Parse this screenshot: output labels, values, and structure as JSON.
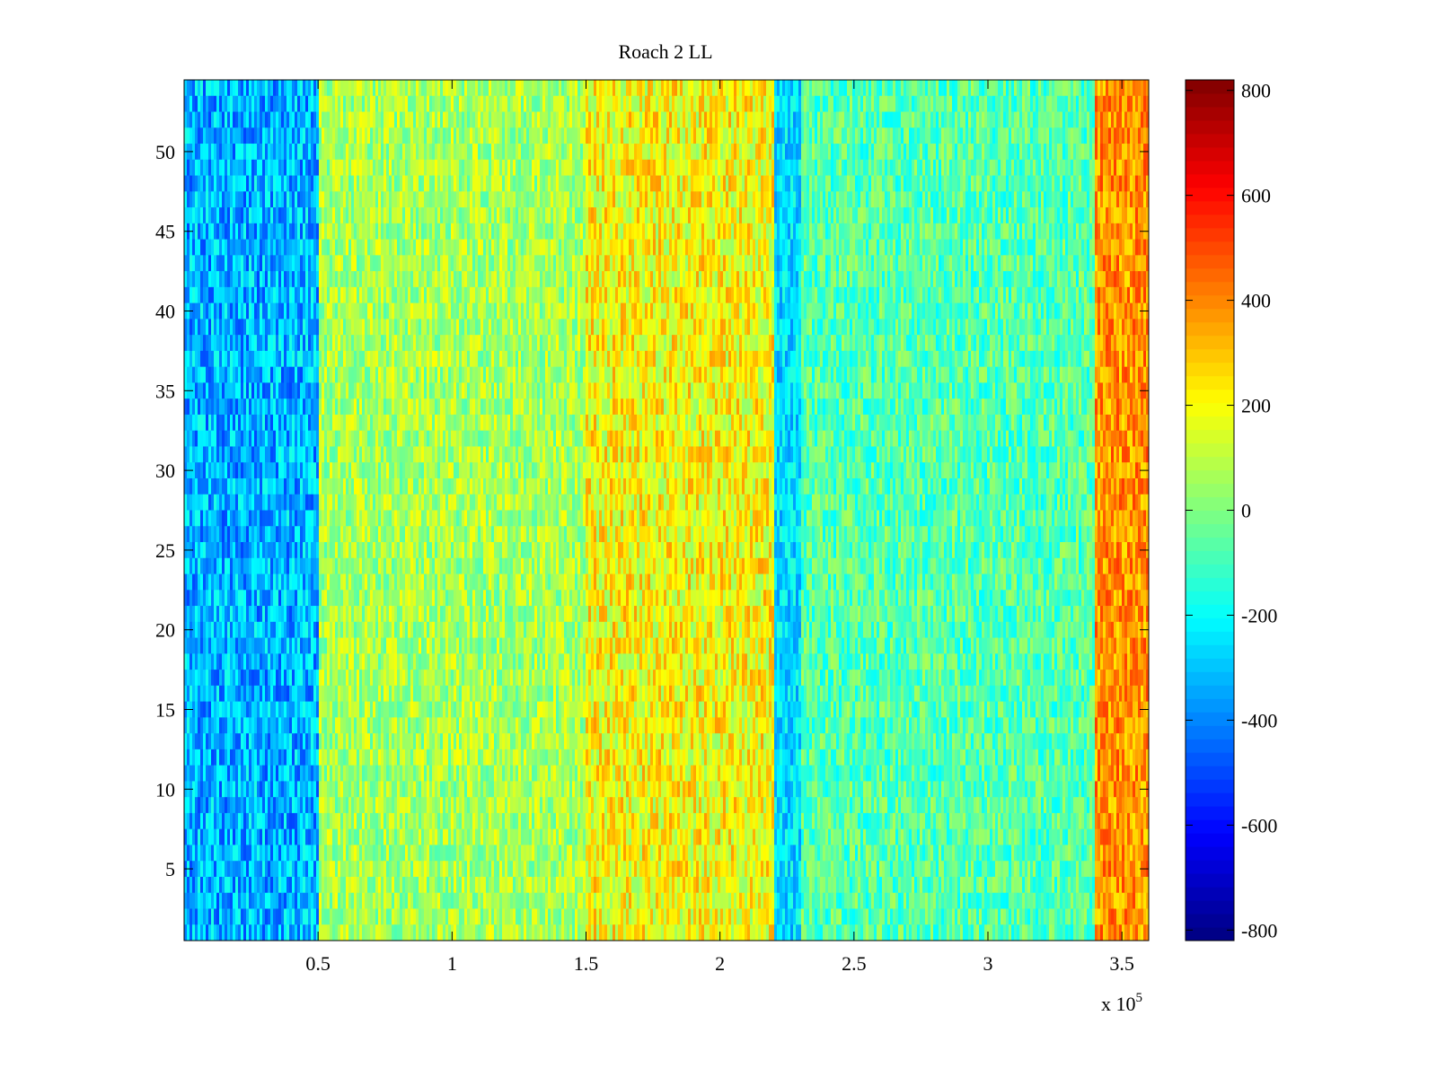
{
  "chart_data": {
    "type": "heatmap",
    "title": "Roach 2 LL",
    "xlabel": "",
    "ylabel": "",
    "x_exponent_label": "x 10",
    "x_exponent_power": "5",
    "xlim": [
      0.0,
      3.6
    ],
    "ylim": [
      0.5,
      54.5
    ],
    "x_ticks": [
      0.5,
      1,
      1.5,
      2,
      2.5,
      3,
      3.5
    ],
    "x_tick_labels": [
      "0.5",
      "1",
      "1.5",
      "2",
      "2.5",
      "3",
      "3.5"
    ],
    "y_ticks": [
      5,
      10,
      15,
      20,
      25,
      30,
      35,
      40,
      45,
      50
    ],
    "y_tick_labels": [
      "5",
      "10",
      "15",
      "20",
      "25",
      "30",
      "35",
      "40",
      "45",
      "50"
    ],
    "colormap": "jet",
    "clim": [
      -820,
      820
    ],
    "colorbar_ticks": [
      800,
      600,
      400,
      200,
      0,
      -200,
      -400,
      -600,
      -800
    ],
    "colorbar_tick_labels": [
      "800",
      "600",
      "400",
      "200",
      "0",
      "-200",
      "-400",
      "-600",
      "-800"
    ],
    "rows": 54,
    "column_bands": [
      {
        "x_start": 0.0,
        "x_end": 0.5,
        "mean_value": -330,
        "noise": 110
      },
      {
        "x_start": 0.5,
        "x_end": 1.5,
        "mean_value": 60,
        "noise": 90
      },
      {
        "x_start": 1.5,
        "x_end": 2.2,
        "mean_value": 200,
        "noise": 110
      },
      {
        "x_start": 2.2,
        "x_end": 2.3,
        "mean_value": -260,
        "noise": 80
      },
      {
        "x_start": 2.3,
        "x_end": 3.4,
        "mean_value": -70,
        "noise": 90
      },
      {
        "x_start": 3.4,
        "x_end": 3.6,
        "mean_value": 380,
        "noise": 90
      }
    ],
    "grid": false,
    "colorbar": "right"
  }
}
